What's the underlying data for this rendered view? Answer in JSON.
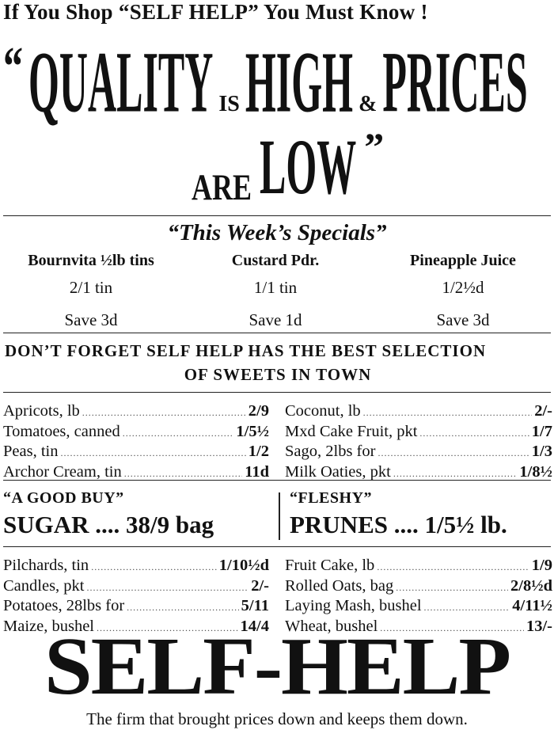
{
  "header": {
    "kicker": "If You Shop “SELF HELP” You Must Know !",
    "open_quote": "“",
    "quality": "QUALITY",
    "is": "IS",
    "high": "HIGH",
    "amp": "&",
    "prices": "PRICES",
    "are": "ARE",
    "low": "LOW",
    "close_quote": "”"
  },
  "specials": {
    "title": "“This Week’s Specials”",
    "items": [
      {
        "name": "Bournvita ½lb tins",
        "price": "2/1 tin",
        "save": "Save 3d"
      },
      {
        "name": "Custard Pdr.",
        "price": "1/1 tin",
        "save": "Save 1d"
      },
      {
        "name": "Pineapple Juice",
        "price": "1/2½d",
        "save": "Save 3d"
      }
    ]
  },
  "sweets_notice": {
    "line1": "DON’T FORGET SELF HELP HAS THE BEST SELECTION",
    "line2": "OF SWEETS IN TOWN"
  },
  "price_list_1": {
    "left": [
      {
        "item": "Apricots, lb",
        "price": "2/9"
      },
      {
        "item": "Tomatoes, canned",
        "price": "1/5½"
      },
      {
        "item": "Peas, tin",
        "price": "1/2"
      },
      {
        "item": "Archor Cream, tin",
        "price": "11d"
      }
    ],
    "right": [
      {
        "item": "Coconut, lb",
        "price": "2/-"
      },
      {
        "item": "Mxd Cake Fruit, pkt",
        "price": "1/7"
      },
      {
        "item": "Sago, 2lbs for",
        "price": "1/3"
      },
      {
        "item": "Milk Oaties, pkt",
        "price": "1/8½"
      }
    ]
  },
  "featured": [
    {
      "label": "“A GOOD BUY”",
      "text": "SUGAR .... 38/9 bag"
    },
    {
      "label": "“FLESHY”",
      "text": "PRUNES .... 1/5½ lb."
    }
  ],
  "price_list_2": {
    "left": [
      {
        "item": "Pilchards, tin",
        "price": "1/10½d"
      },
      {
        "item": "Candles, pkt",
        "price": "2/-"
      },
      {
        "item": "Potatoes, 28lbs for",
        "price": "5/11"
      },
      {
        "item": "Maize, bushel",
        "price": "14/4"
      }
    ],
    "right": [
      {
        "item": "Fruit Cake, lb",
        "price": "1/9"
      },
      {
        "item": "Rolled Oats, bag",
        "price": "2/8½d"
      },
      {
        "item": "Laying Mash, bushel",
        "price": "4/11½"
      },
      {
        "item": "Wheat, bushel",
        "price": "13/-"
      }
    ]
  },
  "footer": {
    "brand": "SELF-HELP",
    "tagline": "The firm that brought prices down and keeps them down."
  }
}
